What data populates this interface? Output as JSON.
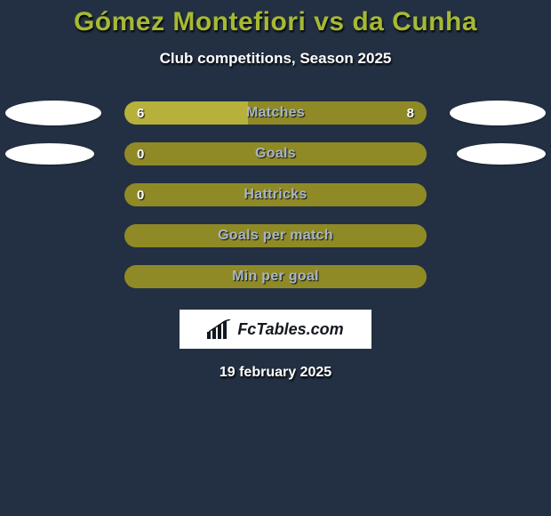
{
  "title": "Gómez Montefiori vs da Cunha",
  "subtitle": "Club competitions, Season 2025",
  "date": "19 february 2025",
  "colors": {
    "bg": "#233043",
    "title": "#a6b933",
    "olive_dark": "#8f8a26",
    "olive_light": "#b7b03a",
    "label": "#aab6c4",
    "white": "#ffffff"
  },
  "logo": {
    "text": "FcTables.com"
  },
  "blobs": {
    "row0": {
      "left_w": 108,
      "left_h": 28,
      "right_w": 108,
      "right_h": 28
    },
    "row1": {
      "left_w": 100,
      "left_h": 24,
      "right_w": 100,
      "right_h": 24
    }
  },
  "rows": [
    {
      "label": "Matches",
      "left_val": "6",
      "right_val": "8",
      "left_pct": 41,
      "right_pct": 59,
      "left_color": "#b7b03a",
      "right_color": "#8f8a26",
      "blobs": true,
      "blob_idx": "row0"
    },
    {
      "label": "Goals",
      "left_val": "0",
      "right_val": "",
      "left_pct": 100,
      "right_pct": 0,
      "left_color": "#8f8a26",
      "right_color": "#8f8a26",
      "blobs": true,
      "blob_idx": "row1"
    },
    {
      "label": "Hattricks",
      "left_val": "0",
      "right_val": "",
      "left_pct": 100,
      "right_pct": 0,
      "left_color": "#8f8a26",
      "right_color": "#8f8a26",
      "blobs": false,
      "blob_idx": ""
    },
    {
      "label": "Goals per match",
      "left_val": "",
      "right_val": "",
      "left_pct": 100,
      "right_pct": 0,
      "left_color": "#8f8a26",
      "right_color": "#8f8a26",
      "blobs": false,
      "blob_idx": ""
    },
    {
      "label": "Min per goal",
      "left_val": "",
      "right_val": "",
      "left_pct": 100,
      "right_pct": 0,
      "left_color": "#8f8a26",
      "right_color": "#8f8a26",
      "blobs": false,
      "blob_idx": ""
    }
  ]
}
